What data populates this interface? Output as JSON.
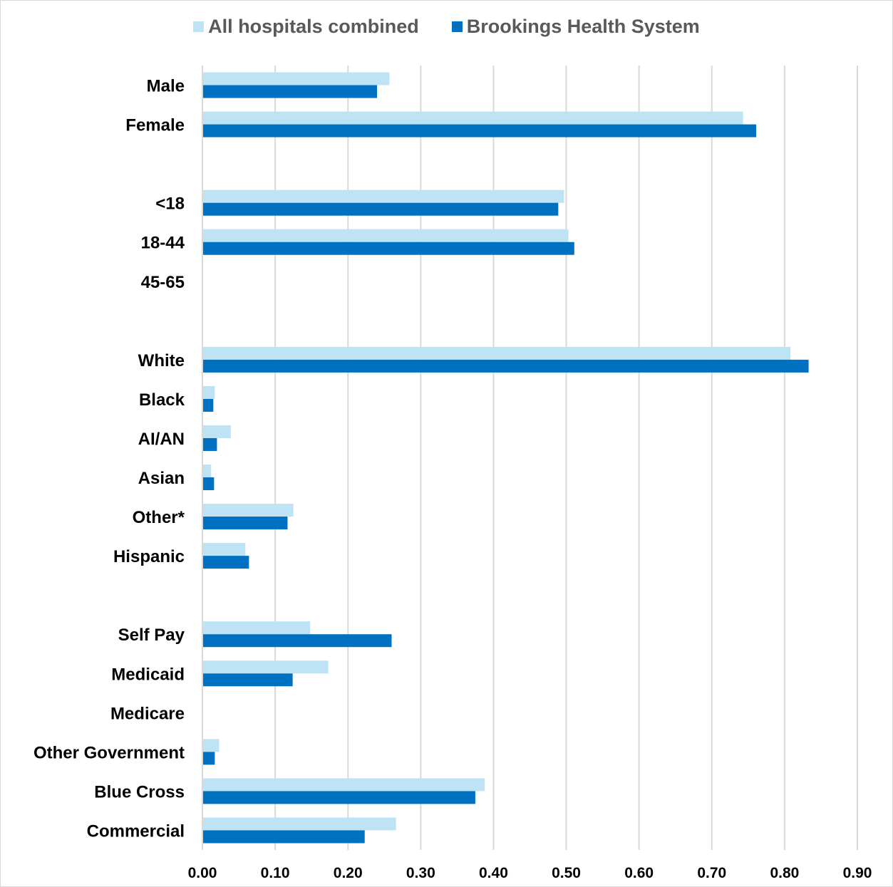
{
  "chart_data": {
    "type": "bar",
    "orientation": "horizontal",
    "categories": [
      "Male",
      "Female",
      "",
      "<18",
      "18-44",
      "45-65",
      "",
      "White",
      "Black",
      "AI/AN",
      "Asian",
      "Other*",
      "Hispanic",
      "",
      "Self Pay",
      "Medicaid",
      "Medicare",
      "Other Government",
      "Blue Cross",
      "Commercial"
    ],
    "series": [
      {
        "name": "All hospitals combined",
        "color": "#bde3f4",
        "values": [
          0.257,
          0.743,
          null,
          0.497,
          0.503,
          0.0,
          null,
          0.808,
          0.017,
          0.039,
          0.012,
          0.125,
          0.059,
          null,
          0.148,
          0.173,
          0.001,
          0.023,
          0.388,
          0.266
        ]
      },
      {
        "name": "Brookings Health System",
        "color": "#0070c0",
        "values": [
          0.24,
          0.761,
          null,
          0.489,
          0.511,
          0.0,
          null,
          0.833,
          0.015,
          0.02,
          0.016,
          0.117,
          0.064,
          null,
          0.26,
          0.124,
          0.001,
          0.017,
          0.375,
          0.223
        ]
      }
    ],
    "xlim": [
      0,
      0.9
    ],
    "xticks": [
      "0.00",
      "0.10",
      "0.20",
      "0.30",
      "0.40",
      "0.50",
      "0.60",
      "0.70",
      "0.80",
      "0.90"
    ],
    "grid": true,
    "legend_position": "top"
  }
}
